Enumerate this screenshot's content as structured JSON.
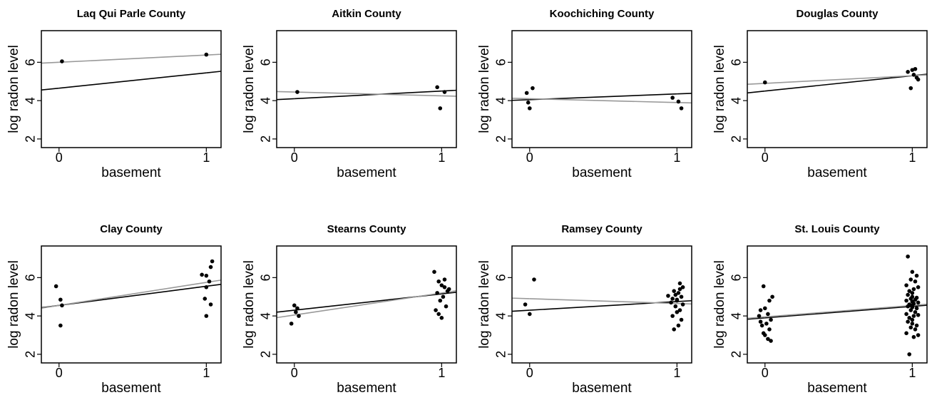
{
  "chart_data": [
    {
      "type": "scatter",
      "title": "Laq Qui Parle County",
      "xlabel": "basement",
      "ylabel": "log radon level",
      "xlim": [
        -0.12,
        1.1
      ],
      "ylim": [
        1.55,
        7.65
      ],
      "xticks": [
        0,
        1
      ],
      "yticks": [
        2,
        4,
        6
      ],
      "series": [
        {
          "type": "scatter",
          "color": "#000000",
          "x": [
            0.02,
            1.0
          ],
          "values": [
            6.05,
            6.4
          ]
        },
        {
          "type": "line",
          "color": "#000000",
          "x": [
            0,
            1
          ],
          "values": [
            4.65,
            5.45
          ]
        },
        {
          "type": "line",
          "color": "#999999",
          "x": [
            0,
            1
          ],
          "values": [
            6.0,
            6.38
          ]
        }
      ]
    },
    {
      "type": "scatter",
      "title": "Aitkin County",
      "xlabel": "basement",
      "ylabel": "log radon level",
      "xlim": [
        -0.12,
        1.1
      ],
      "ylim": [
        1.55,
        7.65
      ],
      "xticks": [
        0,
        1
      ],
      "yticks": [
        2,
        4,
        6
      ],
      "series": [
        {
          "type": "scatter",
          "color": "#000000",
          "x": [
            0.02,
            0.97,
            0.99,
            1.02
          ],
          "values": [
            4.45,
            4.7,
            3.6,
            4.45
          ]
        },
        {
          "type": "line",
          "color": "#000000",
          "x": [
            0,
            1
          ],
          "values": [
            4.1,
            4.5
          ]
        },
        {
          "type": "line",
          "color": "#999999",
          "x": [
            0,
            1
          ],
          "values": [
            4.45,
            4.25
          ]
        }
      ]
    },
    {
      "type": "scatter",
      "title": "Koochiching County",
      "xlabel": "basement",
      "ylabel": "log radon level",
      "xlim": [
        -0.12,
        1.1
      ],
      "ylim": [
        1.55,
        7.65
      ],
      "xticks": [
        0,
        1
      ],
      "yticks": [
        2,
        4,
        6
      ],
      "series": [
        {
          "type": "scatter",
          "color": "#000000",
          "x": [
            -0.02,
            0.02,
            -0.01,
            0.0,
            0.97,
            1.01,
            1.03
          ],
          "values": [
            4.4,
            4.65,
            3.9,
            3.6,
            4.15,
            3.95,
            3.6
          ]
        },
        {
          "type": "line",
          "color": "#000000",
          "x": [
            0,
            1
          ],
          "values": [
            4.05,
            4.35
          ]
        },
        {
          "type": "line",
          "color": "#999999",
          "x": [
            0,
            1
          ],
          "values": [
            4.1,
            3.9
          ]
        }
      ]
    },
    {
      "type": "scatter",
      "title": "Douglas County",
      "xlabel": "basement",
      "ylabel": "log radon level",
      "xlim": [
        -0.12,
        1.1
      ],
      "ylim": [
        1.55,
        7.65
      ],
      "xticks": [
        0,
        1
      ],
      "yticks": [
        2,
        4,
        6
      ],
      "series": [
        {
          "type": "scatter",
          "color": "#000000",
          "x": [
            0.0,
            0.97,
            1.0,
            1.02,
            0.99,
            1.03,
            1.04,
            1.01
          ],
          "values": [
            4.95,
            5.5,
            5.6,
            5.65,
            4.65,
            5.2,
            5.1,
            5.35
          ]
        },
        {
          "type": "line",
          "color": "#000000",
          "x": [
            0,
            1
          ],
          "values": [
            4.5,
            5.3
          ]
        },
        {
          "type": "line",
          "color": "#999999",
          "x": [
            0,
            1
          ],
          "values": [
            4.9,
            5.3
          ]
        }
      ]
    },
    {
      "type": "scatter",
      "title": "Clay County",
      "xlabel": "basement",
      "ylabel": "log radon level",
      "xlim": [
        -0.12,
        1.1
      ],
      "ylim": [
        1.55,
        7.65
      ],
      "xticks": [
        0,
        1
      ],
      "yticks": [
        2,
        4,
        6
      ],
      "series": [
        {
          "type": "scatter",
          "color": "#000000",
          "x": [
            -0.02,
            0.01,
            0.02,
            0.01,
            0.97,
            1.0,
            1.03,
            1.04,
            0.99,
            1.0,
            1.03,
            1.02,
            1.0
          ],
          "values": [
            5.55,
            4.85,
            4.55,
            3.5,
            6.15,
            6.1,
            6.55,
            6.85,
            4.9,
            4.0,
            4.6,
            5.8,
            5.5
          ]
        },
        {
          "type": "line",
          "color": "#000000",
          "x": [
            0,
            1
          ],
          "values": [
            4.55,
            5.55
          ]
        },
        {
          "type": "line",
          "color": "#999999",
          "x": [
            0,
            1
          ],
          "values": [
            4.55,
            5.75
          ]
        }
      ]
    },
    {
      "type": "scatter",
      "title": "Stearns County",
      "xlabel": "basement",
      "ylabel": "log radon level",
      "xlim": [
        -0.12,
        1.1
      ],
      "ylim": [
        1.55,
        7.65
      ],
      "xticks": [
        0,
        1
      ],
      "yticks": [
        2,
        4,
        6
      ],
      "series": [
        {
          "type": "scatter",
          "color": "#000000",
          "x": [
            0.0,
            0.02,
            0.03,
            -0.02,
            0.01,
            0.95,
            0.98,
            1.0,
            1.02,
            1.05,
            0.97,
            0.99,
            1.01,
            1.03,
            0.96,
            0.98,
            1.0,
            1.02,
            1.04
          ],
          "values": [
            4.55,
            4.4,
            4.0,
            3.6,
            4.2,
            6.3,
            5.8,
            5.6,
            5.5,
            5.4,
            5.2,
            4.8,
            5.0,
            4.5,
            4.3,
            4.1,
            3.9,
            5.9,
            5.3
          ]
        },
        {
          "type": "line",
          "color": "#000000",
          "x": [
            0,
            1
          ],
          "values": [
            4.3,
            5.15
          ]
        },
        {
          "type": "line",
          "color": "#999999",
          "x": [
            0,
            1
          ],
          "values": [
            4.05,
            5.2
          ]
        }
      ]
    },
    {
      "type": "scatter",
      "title": "Ramsey County",
      "xlabel": "basement",
      "ylabel": "log radon level",
      "xlim": [
        -0.12,
        1.1
      ],
      "ylim": [
        1.55,
        7.65
      ],
      "xticks": [
        0,
        1
      ],
      "yticks": [
        2,
        4,
        6
      ],
      "series": [
        {
          "type": "scatter",
          "color": "#000000",
          "x": [
            -0.03,
            0.0,
            0.03,
            0.94,
            0.97,
            1.0,
            1.02,
            1.04,
            0.98,
            1.01,
            1.03,
            0.96,
            0.99,
            1.02,
            1.0,
            0.97,
            1.03,
            1.01,
            0.98,
            1.04,
            0.99,
            1.02,
            1.0
          ],
          "values": [
            4.6,
            4.1,
            5.9,
            5.05,
            4.9,
            4.8,
            5.7,
            5.5,
            5.3,
            5.2,
            5.0,
            4.7,
            4.5,
            4.3,
            4.2,
            4.0,
            3.8,
            3.5,
            3.3,
            4.6,
            5.1,
            5.4,
            4.85
          ]
        },
        {
          "type": "line",
          "color": "#000000",
          "x": [
            0,
            1
          ],
          "values": [
            4.3,
            4.75
          ]
        },
        {
          "type": "line",
          "color": "#999999",
          "x": [
            0,
            1
          ],
          "values": [
            4.9,
            4.65
          ]
        }
      ]
    },
    {
      "type": "scatter",
      "title": "St. Louis County",
      "xlabel": "basement",
      "ylabel": "log radon level",
      "xlim": [
        -0.12,
        1.1
      ],
      "ylim": [
        1.55,
        7.65
      ],
      "xticks": [
        0,
        1
      ],
      "yticks": [
        2,
        4,
        6
      ],
      "series": [
        {
          "type": "scatter",
          "color": "#000000",
          "x": [
            -0.01,
            0.05,
            0.03,
            0.0,
            -0.03,
            0.02,
            -0.04,
            0.04,
            0.01,
            -0.02,
            0.03,
            -0.01,
            0.0,
            0.02,
            0.04,
            -0.03,
            0.97,
            1.0,
            1.03,
            0.99,
            1.02,
            0.96,
            1.04,
            1.01,
            0.98,
            1.0,
            0.97,
            1.0,
            1.03,
            0.99,
            1.02,
            0.96,
            1.04,
            1.01,
            0.98,
            1.0,
            0.97,
            1.0,
            1.03,
            0.99,
            1.02,
            0.96,
            1.04,
            1.01,
            0.98,
            1.0,
            0.97,
            1.0,
            1.03,
            0.99,
            1.02,
            0.96,
            1.04,
            1.01,
            0.98,
            1.0
          ],
          "values": [
            5.55,
            5.0,
            4.8,
            4.4,
            4.3,
            4.1,
            4.0,
            3.8,
            3.6,
            3.5,
            3.3,
            3.1,
            3.0,
            2.8,
            2.7,
            3.7,
            7.1,
            6.3,
            6.1,
            5.9,
            5.8,
            5.6,
            5.5,
            5.4,
            5.3,
            5.2,
            5.1,
            5.0,
            4.95,
            4.9,
            4.85,
            4.8,
            4.7,
            4.65,
            4.6,
            4.55,
            4.5,
            4.45,
            4.4,
            4.3,
            4.2,
            4.1,
            4.05,
            4.0,
            3.9,
            3.8,
            3.7,
            3.6,
            3.5,
            3.4,
            3.3,
            3.1,
            3.0,
            2.9,
            2.0,
            4.75
          ]
        },
        {
          "type": "line",
          "color": "#000000",
          "x": [
            0,
            1
          ],
          "values": [
            3.9,
            4.5
          ]
        },
        {
          "type": "line",
          "color": "#999999",
          "x": [
            0,
            1
          ],
          "values": [
            3.95,
            4.55
          ]
        }
      ]
    }
  ]
}
